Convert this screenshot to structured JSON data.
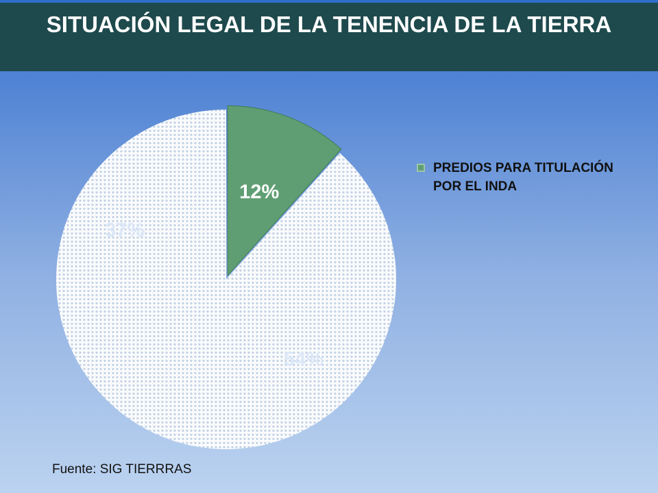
{
  "title": "SITUACIÓN LEGAL DE LA TENENCIA DE LA TIERRA",
  "source": "Fuente: SIG TIERRRAS",
  "chart_data": {
    "type": "pie",
    "title": "",
    "slices": [
      {
        "label": "PREDIOS PARA TITULACIÓN POR EL INDA",
        "value": 12,
        "display": "12%",
        "color": "#5f9e73",
        "pattern": false,
        "label_color": "#ffffff"
      },
      {
        "label": "",
        "value": 54,
        "display": "54%",
        "color": "#dfe8f2",
        "pattern": true,
        "label_color": "#dce7f7"
      },
      {
        "label": "",
        "value": 37,
        "display": "37%",
        "color": "#dfe8f2",
        "pattern": true,
        "label_color": "#dce7f7"
      }
    ],
    "legend": {
      "position": "right",
      "entries": [
        "PREDIOS PARA TITULACIÓN POR EL INDA"
      ]
    }
  }
}
